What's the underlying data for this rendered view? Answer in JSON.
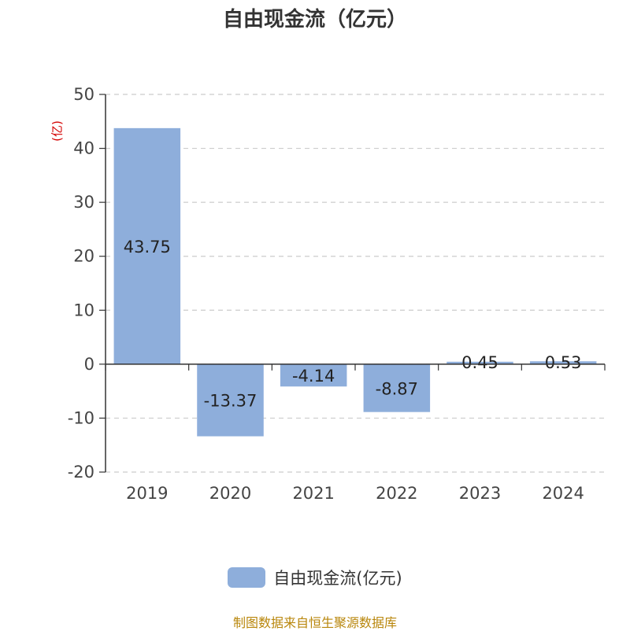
{
  "chart_data": {
    "type": "bar",
    "title": "自由现金流（亿元）",
    "ylabel": "(亿)",
    "categories": [
      "2019",
      "2020",
      "2021",
      "2022",
      "2023",
      "2024"
    ],
    "series": [
      {
        "name": "自由现金流(亿元)",
        "values": [
          43.75,
          -13.37,
          -4.14,
          -8.87,
          0.45,
          0.53
        ]
      }
    ],
    "value_labels": [
      "43.75",
      "-13.37",
      "-4.14",
      "-8.87",
      "0.45",
      "0.53"
    ],
    "yticks": [
      50,
      40,
      30,
      20,
      10,
      0,
      -10,
      -20
    ],
    "ylim": [
      -20,
      50
    ],
    "grid": true,
    "legend_position": "bottom",
    "colors": {
      "bar": "#8eaedb",
      "unit_label": "#d40000",
      "source": "#b8860b"
    }
  },
  "footer": {
    "source": "制图数据来自恒生聚源数据库"
  }
}
